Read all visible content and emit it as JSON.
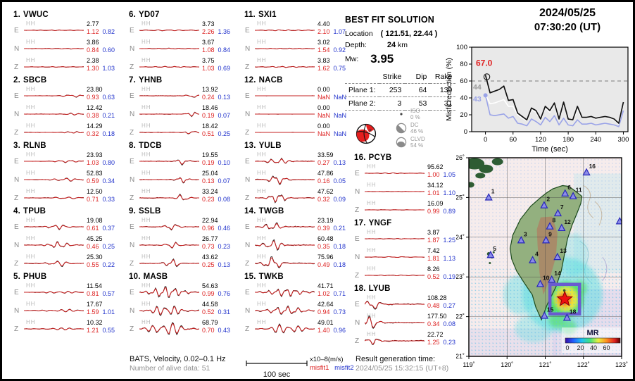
{
  "header": {
    "date": "2024/05/25",
    "time": "07:30:20  (UT)"
  },
  "best_fit": {
    "title": "BEST FIT SOLUTION",
    "location_label": "Location",
    "location_value": "( 121.51,  22.44 )",
    "depth_label": "Depth:",
    "depth_value": "24",
    "depth_unit": "km",
    "mw_label": "Mw:",
    "mw_value": "3.95",
    "col_strike": "Strike",
    "col_dip": "Dip",
    "col_rake": "Rake",
    "plane1": {
      "label": "Plane 1:",
      "strike": "253",
      "dip": "64",
      "rake": "139"
    },
    "plane2": {
      "label": "Plane 2:",
      "strike": "3",
      "dip": "53",
      "rake": "31"
    },
    "iso": {
      "label": "ISO",
      "pct": "0 %"
    },
    "dc": {
      "label": "DC",
      "pct": "46 %"
    },
    "clvd": {
      "label": "CLVD",
      "pct": "54 %"
    }
  },
  "chart_data": {
    "type": "line",
    "title": "Misfit reduction vs time",
    "xlabel": "Time (sec)",
    "ylabel": "Misfit reduction (%)",
    "xlim": [
      -30,
      310
    ],
    "ylim": [
      0,
      100
    ],
    "xticks": [
      "0",
      "60",
      "120",
      "180",
      "240",
      "300"
    ],
    "xtick_values": [
      0,
      60,
      120,
      180,
      240,
      300
    ],
    "yticks": [
      "0",
      "20",
      "40",
      "60",
      "80",
      "100"
    ],
    "ytick_values": [
      0,
      20,
      40,
      60,
      80,
      100
    ],
    "dashed_line_y": 60,
    "x": [
      0,
      10,
      20,
      30,
      40,
      50,
      60,
      70,
      80,
      90,
      100,
      110,
      120,
      130,
      140,
      150,
      160,
      170,
      180,
      190,
      200,
      210,
      220,
      230,
      240,
      250,
      260,
      270,
      280,
      290,
      300
    ],
    "series": [
      {
        "name": "misfit-reduction-best",
        "color": "#111111",
        "values": [
          67,
          46,
          48,
          50,
          54,
          37,
          38,
          22,
          18,
          14,
          28,
          25,
          15,
          30,
          25,
          34,
          15,
          35,
          15,
          14,
          30,
          17,
          17,
          18,
          16,
          17,
          18,
          17,
          15,
          10,
          35
        ]
      },
      {
        "name": "misfit-reduction-mid",
        "color": "#ffffff",
        "values": [
          44,
          33,
          34,
          36,
          38,
          30,
          30,
          20,
          16,
          13,
          26,
          23,
          14,
          28,
          23,
          32,
          14,
          33,
          14,
          13,
          26,
          16,
          16,
          17,
          15,
          16,
          17,
          16,
          14,
          9,
          33
        ]
      },
      {
        "name": "misfit-reduction-low",
        "color": "#9aa3e8",
        "values": [
          43,
          20,
          19,
          20,
          21,
          16,
          18,
          10,
          9,
          7,
          15,
          12,
          8,
          17,
          12,
          19,
          8,
          16,
          8,
          7,
          14,
          9,
          9,
          10,
          8,
          9,
          10,
          9,
          8,
          6,
          25
        ]
      }
    ],
    "annotations": [
      {
        "text": "67.0",
        "color": "#e02020"
      },
      {
        "text": "44",
        "color": "#9a9a9a"
      },
      {
        "text": "43",
        "color": "#9aa3e8"
      }
    ],
    "legend": "none",
    "grid": "off"
  },
  "stations": [
    {
      "num": "1.",
      "name": "VWUC",
      "components": [
        {
          "comp": "E",
          "ch": "HH",
          "amp": "2.77",
          "m1": "1.12",
          "m2": "0.82"
        },
        {
          "comp": "N",
          "ch": "HH",
          "amp": "3.86",
          "m1": "0.84",
          "m2": "0.60"
        },
        {
          "comp": "Z",
          "ch": "HH",
          "amp": "2.38",
          "m1": "1.30",
          "m2": "1.03"
        }
      ]
    },
    {
      "num": "2.",
      "name": "SBCB",
      "components": [
        {
          "comp": "E",
          "ch": "HH",
          "amp": "23.80",
          "m1": "0.93",
          "m2": "0.63"
        },
        {
          "comp": "N",
          "ch": "HH",
          "amp": "12.42",
          "m1": "0.38",
          "m2": "0.21"
        },
        {
          "comp": "Z",
          "ch": "HH",
          "amp": "14.29",
          "m1": "0.32",
          "m2": "0.18"
        }
      ]
    },
    {
      "num": "3.",
      "name": "RLNB",
      "components": [
        {
          "comp": "E",
          "ch": "HH",
          "amp": "23.93",
          "m1": "1.03",
          "m2": "0.80"
        },
        {
          "comp": "N",
          "ch": "HH",
          "amp": "52.83",
          "m1": "0.59",
          "m2": "0.34"
        },
        {
          "comp": "Z",
          "ch": "HH",
          "amp": "12.50",
          "m1": "0.71",
          "m2": "0.33"
        }
      ]
    },
    {
      "num": "4.",
      "name": "TPUB",
      "components": [
        {
          "comp": "E",
          "ch": "HH",
          "amp": "19.08",
          "m1": "0.61",
          "m2": "0.37"
        },
        {
          "comp": "N",
          "ch": "HH",
          "amp": "45.25",
          "m1": "0.46",
          "m2": "0.25"
        },
        {
          "comp": "Z",
          "ch": "HH",
          "amp": "25.30",
          "m1": "0.55",
          "m2": "0.22"
        }
      ]
    },
    {
      "num": "5.",
      "name": "PHUB",
      "components": [
        {
          "comp": "E",
          "ch": "HH",
          "amp": "11.54",
          "m1": "0.81",
          "m2": "0.57"
        },
        {
          "comp": "N",
          "ch": "HH",
          "amp": "17.67",
          "m1": "1.59",
          "m2": "1.01"
        },
        {
          "comp": "Z",
          "ch": "HH",
          "amp": "10.32",
          "m1": "1.21",
          "m2": "0.55"
        }
      ]
    },
    {
      "num": "6.",
      "name": "YD07",
      "components": [
        {
          "comp": "E",
          "ch": "HH",
          "amp": "3.73",
          "m1": "2.26",
          "m2": "1.36"
        },
        {
          "comp": "N",
          "ch": "HH",
          "amp": "3.67",
          "m1": "1.08",
          "m2": "0.84"
        },
        {
          "comp": "Z",
          "ch": "HH",
          "amp": "3.75",
          "m1": "1.03",
          "m2": "0.69"
        }
      ]
    },
    {
      "num": "7.",
      "name": "YHNB",
      "components": [
        {
          "comp": "E",
          "ch": "HH",
          "amp": "13.92",
          "m1": "0.24",
          "m2": "0.13"
        },
        {
          "comp": "N",
          "ch": "HH",
          "amp": "18.46",
          "m1": "0.19",
          "m2": "0.07"
        },
        {
          "comp": "Z",
          "ch": "HH",
          "amp": "18.42",
          "m1": "0.51",
          "m2": "0.25"
        }
      ]
    },
    {
      "num": "8.",
      "name": "TDCB",
      "components": [
        {
          "comp": "E",
          "ch": "HH",
          "amp": "19.55",
          "m1": "0.19",
          "m2": "0.10"
        },
        {
          "comp": "N",
          "ch": "HH",
          "amp": "25.04",
          "m1": "0.13",
          "m2": "0.07"
        },
        {
          "comp": "Z",
          "ch": "HH",
          "amp": "33.24",
          "m1": "0.23",
          "m2": "0.08"
        }
      ]
    },
    {
      "num": "9.",
      "name": "SSLB",
      "components": [
        {
          "comp": "E",
          "ch": "HH",
          "amp": "22.94",
          "m1": "0.96",
          "m2": "0.46"
        },
        {
          "comp": "N",
          "ch": "HH",
          "amp": "26.77",
          "m1": "0.73",
          "m2": "0.23"
        },
        {
          "comp": "Z",
          "ch": "HH",
          "amp": "43.62",
          "m1": "0.25",
          "m2": "0.13"
        }
      ]
    },
    {
      "num": "10.",
      "name": "MASB",
      "components": [
        {
          "comp": "E",
          "ch": "HH",
          "amp": "54.63",
          "m1": "0.99",
          "m2": "0.76"
        },
        {
          "comp": "N",
          "ch": "HH",
          "amp": "44.58",
          "m1": "0.52",
          "m2": "0.31"
        },
        {
          "comp": "Z",
          "ch": "HH",
          "amp": "68.79",
          "m1": "0.70",
          "m2": "0.43"
        }
      ]
    },
    {
      "num": "11.",
      "name": "SXI1",
      "components": [
        {
          "comp": "E",
          "ch": "HH",
          "amp": "4.40",
          "m1": "2.10",
          "m2": "1.07"
        },
        {
          "comp": "N",
          "ch": "HH",
          "amp": "3.02",
          "m1": "1.54",
          "m2": "0.92"
        },
        {
          "comp": "Z",
          "ch": "HH",
          "amp": "3.83",
          "m1": "1.62",
          "m2": "0.75"
        }
      ]
    },
    {
      "num": "12.",
      "name": "NACB",
      "components": [
        {
          "comp": "E",
          "ch": "HH",
          "amp": "0.00",
          "m1": "NaN",
          "m2": "NaN"
        },
        {
          "comp": "N",
          "ch": "HH",
          "amp": "0.00",
          "m1": "NaN",
          "m2": "NaN"
        },
        {
          "comp": "Z",
          "ch": "HH",
          "amp": "0.00",
          "m1": "NaN",
          "m2": "NaN"
        }
      ]
    },
    {
      "num": "13.",
      "name": "YULB",
      "components": [
        {
          "comp": "E",
          "ch": "HH",
          "amp": "33.59",
          "m1": "0.27",
          "m2": "0.13"
        },
        {
          "comp": "N",
          "ch": "HH",
          "amp": "47.86",
          "m1": "0.16",
          "m2": "0.05"
        },
        {
          "comp": "Z",
          "ch": "HH",
          "amp": "47.62",
          "m1": "0.32",
          "m2": "0.09"
        }
      ]
    },
    {
      "num": "14.",
      "name": "TWGB",
      "components": [
        {
          "comp": "E",
          "ch": "HH",
          "amp": "23.19",
          "m1": "0.39",
          "m2": "0.21"
        },
        {
          "comp": "N",
          "ch": "HH",
          "amp": "60.48",
          "m1": "0.35",
          "m2": "0.18"
        },
        {
          "comp": "Z",
          "ch": "HH",
          "amp": "75.96",
          "m1": "0.49",
          "m2": "0.18"
        }
      ]
    },
    {
      "num": "15.",
      "name": "TWKB",
      "components": [
        {
          "comp": "E",
          "ch": "HH",
          "amp": "41.71",
          "m1": "1.02",
          "m2": "0.71"
        },
        {
          "comp": "N",
          "ch": "HH",
          "amp": "42.64",
          "m1": "0.94",
          "m2": "0.73"
        },
        {
          "comp": "Z",
          "ch": "HH",
          "amp": "49.01",
          "m1": "1.40",
          "m2": "0.96"
        }
      ]
    },
    {
      "num": "16.",
      "name": "PCYB",
      "components": [
        {
          "comp": "E",
          "ch": "HH",
          "amp": "95.62",
          "m1": "1.00",
          "m2": "1.05"
        },
        {
          "comp": "N",
          "ch": "HH",
          "amp": "34.12",
          "m1": "1.01",
          "m2": "1.10"
        },
        {
          "comp": "Z",
          "ch": "HH",
          "amp": "16.09",
          "m1": "0.99",
          "m2": "0.89"
        }
      ]
    },
    {
      "num": "17.",
      "name": "YNGF",
      "components": [
        {
          "comp": "E",
          "ch": "HH",
          "amp": "3.87",
          "m1": "1.87",
          "m2": "1.25"
        },
        {
          "comp": "N",
          "ch": "HH",
          "amp": "7.42",
          "m1": "1.81",
          "m2": "1.13"
        },
        {
          "comp": "Z",
          "ch": "HH",
          "amp": "8.26",
          "m1": "0.52",
          "m2": "0.19"
        }
      ]
    },
    {
      "num": "18.",
      "name": "LYUB",
      "components": [
        {
          "comp": "E",
          "ch": "HH",
          "amp": "108.28",
          "m1": "0.48",
          "m2": "0.27"
        },
        {
          "comp": "N",
          "ch": "HH",
          "amp": "177.50",
          "m1": "0.34",
          "m2": "0.08"
        },
        {
          "comp": "Z",
          "ch": "HH",
          "amp": "22.72",
          "m1": "1.25",
          "m2": "0.23"
        }
      ]
    }
  ],
  "footer": {
    "bats": "BATS, Velocity, 0.02–0.1 Hz",
    "alive": "Number of alive data: 51",
    "scalebar_label": "100 sec",
    "unit": "x10–8(m/s)",
    "m1_label": "misfit1",
    "m2_label": "misfit2",
    "gen_label": "Result generation time:",
    "gen_value": "2024/05/25 15:32:15 (UT+8)"
  },
  "map": {
    "lat_ticks": [
      "26˚",
      "25˚",
      "24˚",
      "23˚",
      "22˚",
      "21˚"
    ],
    "lat_values": [
      26,
      25,
      24,
      23,
      22,
      21
    ],
    "lon_ticks": [
      "119˚",
      "120˚",
      "121˚",
      "122˚",
      "123˚"
    ],
    "lon_values": [
      119,
      120,
      121,
      122,
      123
    ],
    "epicenter": {
      "lon": 121.51,
      "lat": 22.44
    },
    "mr_label": "MR",
    "colorbar_ticks": [
      "0",
      "20",
      "40",
      "60"
    ],
    "stations": [
      {
        "num": "1",
        "lon": 119.52,
        "lat": 25.0
      },
      {
        "num": "2",
        "lon": 120.97,
        "lat": 24.8
      },
      {
        "num": "3",
        "lon": 120.37,
        "lat": 23.92
      },
      {
        "num": "4",
        "lon": 120.67,
        "lat": 23.42
      },
      {
        "num": "5",
        "lon": 119.57,
        "lat": 23.55
      },
      {
        "num": "6",
        "lon": 121.52,
        "lat": 25.1
      },
      {
        "num": "7",
        "lon": 121.33,
        "lat": 24.6
      },
      {
        "num": "8",
        "lon": 121.12,
        "lat": 24.27
      },
      {
        "num": "9",
        "lon": 121.02,
        "lat": 23.92
      },
      {
        "num": "10",
        "lon": 120.87,
        "lat": 22.82
      },
      {
        "num": "11",
        "lon": 121.73,
        "lat": 25.03
      },
      {
        "num": "12",
        "lon": 121.43,
        "lat": 24.23
      },
      {
        "num": "13",
        "lon": 121.32,
        "lat": 23.5
      },
      {
        "num": "14",
        "lon": 121.17,
        "lat": 22.93
      },
      {
        "num": "15",
        "lon": 120.98,
        "lat": 22.02
      },
      {
        "num": "16",
        "lon": 122.08,
        "lat": 25.63
      },
      {
        "num": "17",
        "lon": 122.95,
        "lat": 24.4
      },
      {
        "num": "18",
        "lon": 121.57,
        "lat": 21.97
      }
    ]
  }
}
